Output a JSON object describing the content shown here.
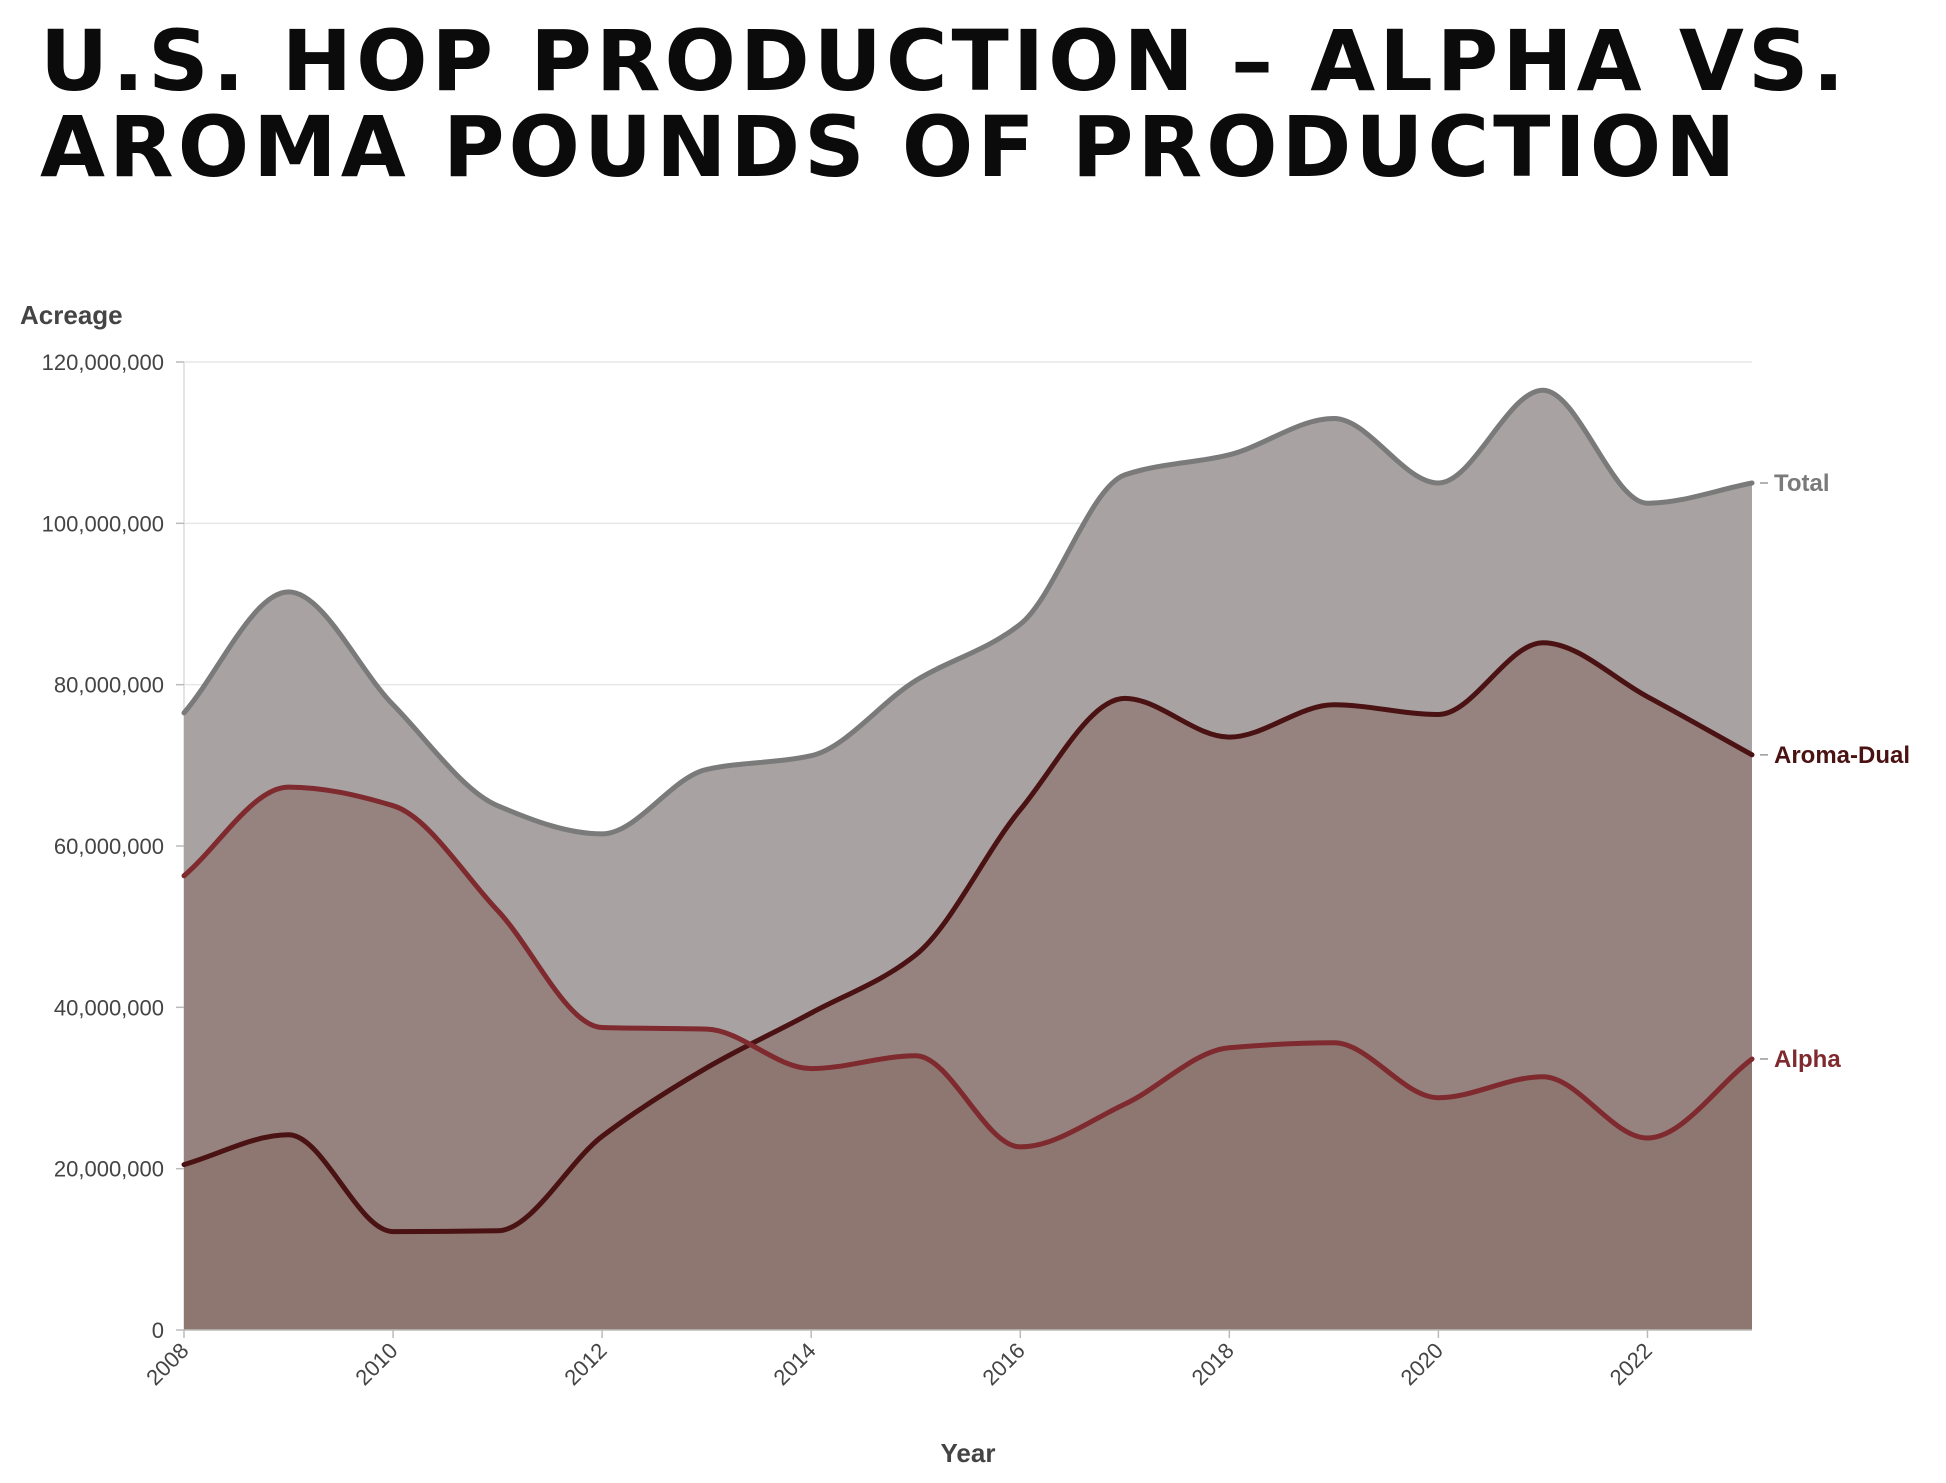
{
  "title_lines": [
    "U.S. HOP PRODUCTION – ALPHA VS.",
    "AROMA POUNDS OF PRODUCTION"
  ],
  "chart_data": {
    "type": "area",
    "title": "U.S. HOP PRODUCTION – ALPHA VS. AROMA POUNDS OF PRODUCTION",
    "xlabel": "Year",
    "ylabel": "Acreage",
    "x": [
      2008,
      2009,
      2010,
      2011,
      2012,
      2013,
      2014,
      2015,
      2016,
      2017,
      2018,
      2019,
      2020,
      2021,
      2022,
      2023
    ],
    "xlim": [
      2008,
      2023
    ],
    "ylim": [
      0,
      120000000
    ],
    "x_ticks": [
      2008,
      2010,
      2012,
      2014,
      2016,
      2018,
      2020,
      2022
    ],
    "y_ticks": [
      0,
      20000000,
      40000000,
      60000000,
      80000000,
      100000000,
      120000000
    ],
    "y_tick_labels": [
      "0",
      "20,000,000",
      "40,000,000",
      "60,000,000",
      "80,000,000",
      "100,000,000",
      "120,000,000"
    ],
    "grid": true,
    "series": [
      {
        "name": "Total",
        "color": "#7a7a7a",
        "fill": "#a8a3a2",
        "values": [
          76500000,
          91500000,
          77500000,
          65000000,
          61500000,
          69500000,
          71200000,
          80500000,
          87500000,
          106000000,
          108500000,
          113000000,
          105000000,
          116500000,
          102500000,
          105000000
        ]
      },
      {
        "name": "Aroma-Dual",
        "color": "#4a1212",
        "fill": "#8a7069",
        "values": [
          20500000,
          24200000,
          12200000,
          12300000,
          24000000,
          32500000,
          39300000,
          46500000,
          64500000,
          78300000,
          73500000,
          77500000,
          76300000,
          85200000,
          78500000,
          71300000
        ]
      },
      {
        "name": "Alpha",
        "color": "#7e2a2e",
        "fill": "#8a7069",
        "values": [
          56300000,
          67300000,
          65000000,
          52000000,
          37500000,
          37300000,
          32400000,
          34000000,
          22700000,
          28000000,
          35000000,
          35600000,
          28800000,
          31400000,
          23800000,
          33600000
        ]
      }
    ]
  }
}
